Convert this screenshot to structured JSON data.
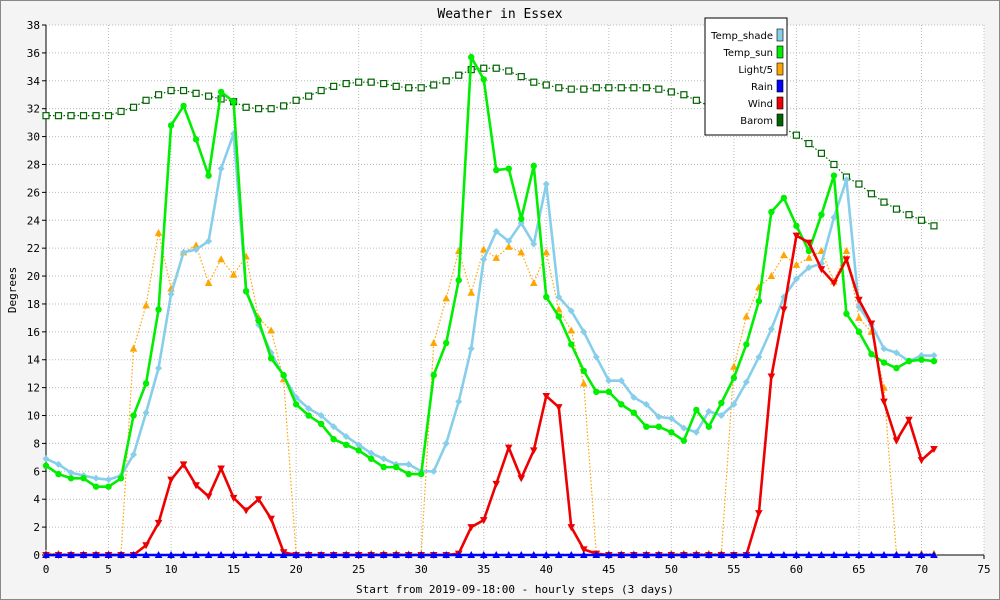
{
  "chart_data": {
    "type": "line",
    "title": "Weather in Essex",
    "xlabel": "Start from 2019-09-18:00 - hourly steps (3 days)",
    "ylabel": "Degrees",
    "xlim": [
      0,
      75
    ],
    "ylim": [
      0,
      38
    ],
    "x_ticks": [
      "0",
      "5",
      "10",
      "15",
      "20",
      "25",
      "30",
      "35",
      "40",
      "45",
      "50",
      "55",
      "60",
      "65",
      "70",
      "75"
    ],
    "y_ticks": [
      "0",
      "2",
      "4",
      "6",
      "8",
      "10",
      "12",
      "14",
      "16",
      "18",
      "20",
      "22",
      "24",
      "26",
      "28",
      "30",
      "32",
      "34",
      "36",
      "38"
    ],
    "grid": true,
    "legend_position": "top-right",
    "x": [
      0,
      1,
      2,
      3,
      4,
      5,
      6,
      7,
      8,
      9,
      10,
      11,
      12,
      13,
      14,
      15,
      16,
      17,
      18,
      19,
      20,
      21,
      22,
      23,
      24,
      25,
      26,
      27,
      28,
      29,
      30,
      31,
      32,
      33,
      34,
      35,
      36,
      37,
      38,
      39,
      40,
      41,
      42,
      43,
      44,
      45,
      46,
      47,
      48,
      49,
      50,
      51,
      52,
      53,
      54,
      55,
      56,
      57,
      58,
      59,
      60,
      61,
      62,
      63,
      64,
      65,
      66,
      67,
      68,
      69,
      70,
      71
    ],
    "series": [
      {
        "name": "Temp_shade",
        "color": "#87ceeb",
        "style": "solid-thick",
        "marker": "diamond",
        "values": [
          6.9,
          6.5,
          5.9,
          5.7,
          5.5,
          5.4,
          5.7,
          7.2,
          10.2,
          13.4,
          18.7,
          21.7,
          21.9,
          22.5,
          27.7,
          30.2,
          19.0,
          16.5,
          14.5,
          12.8,
          11.3,
          10.5,
          10.0,
          9.2,
          8.5,
          7.9,
          7.3,
          6.9,
          6.5,
          6.5,
          6.0,
          6.0,
          8.0,
          11.0,
          14.8,
          21.2,
          23.2,
          22.5,
          23.8,
          22.3,
          26.6,
          18.5,
          17.5,
          16.0,
          14.2,
          12.5,
          12.5,
          11.3,
          10.8,
          9.9,
          9.8,
          9.1,
          8.8,
          10.3,
          10.0,
          10.8,
          12.4,
          14.2,
          16.2,
          18.5,
          19.8,
          20.6,
          20.9,
          24.2,
          26.9,
          17.8,
          16.5,
          14.8,
          14.5,
          13.9,
          14.3,
          14.3
        ]
      },
      {
        "name": "Temp_sun",
        "color": "#00ee00",
        "style": "solid-thick",
        "marker": "circle",
        "values": [
          6.4,
          5.8,
          5.5,
          5.5,
          4.9,
          4.9,
          5.5,
          10.0,
          12.3,
          17.6,
          30.8,
          32.2,
          29.8,
          27.2,
          33.2,
          32.5,
          18.9,
          16.8,
          14.1,
          12.9,
          10.8,
          10.0,
          9.4,
          8.3,
          7.9,
          7.5,
          6.9,
          6.3,
          6.3,
          5.8,
          5.8,
          12.9,
          15.2,
          19.7,
          35.7,
          34.1,
          27.6,
          27.7,
          24.1,
          27.9,
          18.5,
          17.1,
          15.1,
          13.2,
          11.7,
          11.7,
          10.8,
          10.2,
          9.2,
          9.2,
          8.8,
          8.2,
          10.4,
          9.2,
          10.9,
          12.7,
          15.1,
          18.2,
          24.6,
          25.6,
          23.6,
          21.8,
          24.4,
          27.2,
          17.3,
          16.0,
          14.4,
          13.8,
          13.4,
          13.9,
          14.0,
          13.9
        ]
      },
      {
        "name": "Light/5",
        "color": "#ffa500",
        "style": "dotted",
        "marker": "triangle-up",
        "values": [
          0.1,
          0.1,
          0.05,
          0.05,
          0.05,
          0.05,
          0.05,
          14.8,
          17.9,
          23.1,
          19.1,
          21.7,
          22.2,
          19.5,
          21.2,
          20.1,
          21.4,
          17.0,
          16.1,
          12.6,
          0.0,
          0.0,
          0.0,
          0.0,
          0.05,
          0.05,
          0.1,
          0.1,
          0.1,
          0.05,
          0.05,
          15.2,
          18.4,
          21.8,
          18.8,
          21.9,
          21.3,
          22.1,
          21.7,
          19.5,
          21.7,
          17.6,
          16.1,
          12.3,
          0.05,
          0.05,
          0.05,
          0.05,
          0.05,
          0.05,
          0.1,
          0.1,
          0.1,
          0.1,
          0.1,
          13.5,
          17.1,
          19.2,
          20.0,
          21.5,
          20.8,
          21.3,
          21.8,
          19.6,
          21.8,
          17.0,
          16.0,
          12.0,
          0.05,
          0.05,
          0.1,
          0.1
        ]
      },
      {
        "name": "Rain",
        "color": "#0000ff",
        "style": "solid-thick",
        "marker": "triangle-up",
        "values": [
          0,
          0,
          0,
          0,
          0,
          0,
          0,
          0,
          0,
          0,
          0,
          0,
          0,
          0,
          0,
          0,
          0,
          0,
          0,
          0,
          0,
          0,
          0,
          0,
          0,
          0,
          0,
          0,
          0,
          0,
          0,
          0,
          0,
          0,
          0,
          0,
          0,
          0,
          0,
          0,
          0,
          0,
          0,
          0,
          0,
          0,
          0,
          0,
          0,
          0,
          0,
          0,
          0,
          0,
          0,
          0,
          0,
          0,
          0,
          0,
          0,
          0,
          0,
          0,
          0,
          0,
          0,
          0,
          0,
          0,
          0,
          0
        ]
      },
      {
        "name": "Wind",
        "color": "#ee0000",
        "style": "solid-thick",
        "marker": "triangle-down",
        "values": [
          0.0,
          0.0,
          0.0,
          0.0,
          0.0,
          0.0,
          0.0,
          0.0,
          0.7,
          2.3,
          5.4,
          6.5,
          5.0,
          4.2,
          6.2,
          4.1,
          3.2,
          4.0,
          2.6,
          0.2,
          0.0,
          0.0,
          0.0,
          0.0,
          0.0,
          0.0,
          0.0,
          0.0,
          0.0,
          0.0,
          0.0,
          0.0,
          0.0,
          0.1,
          2.0,
          2.5,
          5.1,
          7.7,
          5.5,
          7.5,
          11.4,
          10.6,
          2.0,
          0.4,
          0.1,
          0.0,
          0.0,
          0.0,
          0.0,
          0.0,
          0.0,
          0.0,
          0.0,
          0.0,
          0.0,
          0.0,
          0.0,
          3.0,
          12.8,
          17.6,
          22.9,
          22.4,
          20.5,
          19.5,
          21.2,
          18.3,
          16.6,
          11.0,
          8.2,
          9.7,
          6.8,
          7.6
        ]
      },
      {
        "name": "Barom",
        "color": "#006400",
        "style": "dotted",
        "marker": "square-open",
        "values": [
          31.5,
          31.5,
          31.5,
          31.5,
          31.5,
          31.5,
          31.8,
          32.1,
          32.6,
          33.0,
          33.3,
          33.3,
          33.1,
          32.9,
          32.7,
          32.5,
          32.1,
          32.0,
          32.0,
          32.2,
          32.6,
          32.9,
          33.3,
          33.6,
          33.8,
          33.9,
          33.9,
          33.8,
          33.6,
          33.5,
          33.5,
          33.7,
          34.0,
          34.4,
          34.8,
          34.9,
          34.9,
          34.7,
          34.3,
          33.9,
          33.7,
          33.5,
          33.4,
          33.4,
          33.5,
          33.5,
          33.5,
          33.5,
          33.5,
          33.4,
          33.2,
          33.0,
          32.6,
          32.2,
          31.9,
          31.6,
          31.4,
          31.3,
          31.0,
          30.6,
          30.1,
          29.5,
          28.8,
          28.0,
          27.1,
          26.6,
          25.9,
          25.3,
          24.8,
          24.4,
          24.0,
          23.6
        ]
      }
    ]
  }
}
